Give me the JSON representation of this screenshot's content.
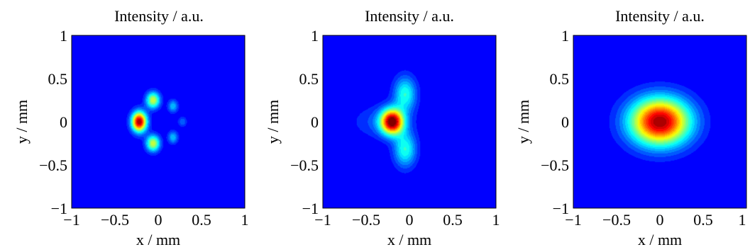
{
  "chart_data": [
    {
      "type": "heatmap",
      "title": "Intensity / a.u.",
      "xlabel": "x / mm",
      "ylabel": "y / mm",
      "xlim": [
        -1,
        1
      ],
      "ylim": [
        -1,
        1
      ],
      "xticks": [
        "−1",
        "−0.5",
        "0",
        "0.5",
        "1"
      ],
      "yticks": [
        "1",
        "0.5",
        "0",
        "−0.5",
        "−1"
      ],
      "colormap": "jet",
      "grid": false,
      "blobs": [
        {
          "x": -0.22,
          "y": 0.0,
          "sx": 0.06,
          "sy": 0.08,
          "amp": 1.0
        },
        {
          "x": -0.06,
          "y": 0.25,
          "sx": 0.055,
          "sy": 0.065,
          "amp": 0.55
        },
        {
          "x": -0.06,
          "y": -0.25,
          "sx": 0.055,
          "sy": 0.065,
          "amp": 0.55
        },
        {
          "x": 0.17,
          "y": 0.18,
          "sx": 0.04,
          "sy": 0.05,
          "amp": 0.25
        },
        {
          "x": 0.17,
          "y": -0.18,
          "sx": 0.04,
          "sy": 0.05,
          "amp": 0.25
        },
        {
          "x": 0.28,
          "y": 0.0,
          "sx": 0.035,
          "sy": 0.04,
          "amp": 0.15
        }
      ]
    },
    {
      "type": "heatmap",
      "title": "Intensity / a.u.",
      "xlabel": "x / mm",
      "ylabel": "y / mm",
      "xlim": [
        -1,
        1
      ],
      "ylim": [
        -1,
        1
      ],
      "xticks": [
        "−1",
        "−0.5",
        "0",
        "0.5",
        "1"
      ],
      "yticks": [
        "1",
        "0.5",
        "0",
        "−0.5",
        "−1"
      ],
      "colormap": "jet",
      "grid": false,
      "blobs": [
        {
          "x": -0.2,
          "y": 0.0,
          "sx": 0.09,
          "sy": 0.1,
          "amp": 1.0
        },
        {
          "x": -0.05,
          "y": 0.32,
          "sx": 0.09,
          "sy": 0.14,
          "amp": 0.35
        },
        {
          "x": -0.05,
          "y": -0.32,
          "sx": 0.09,
          "sy": 0.14,
          "amp": 0.35
        },
        {
          "x": -0.32,
          "y": 0.0,
          "sx": 0.22,
          "sy": 0.13,
          "amp": 0.12
        }
      ]
    },
    {
      "type": "heatmap",
      "title": "Intensity / a.u.",
      "xlabel": "x / mm",
      "ylabel": "y / mm",
      "xlim": [
        -1,
        1
      ],
      "ylim": [
        -1,
        1
      ],
      "xticks": [
        "−1",
        "−0.5",
        "0",
        "0.5",
        "1"
      ],
      "yticks": [
        "1",
        "0.5",
        "0",
        "−0.5",
        "−1"
      ],
      "colormap": "jet",
      "grid": false,
      "blobs": [
        {
          "x": 0.0,
          "y": 0.0,
          "sx": 0.24,
          "sy": 0.19,
          "amp": 1.0
        }
      ]
    }
  ]
}
